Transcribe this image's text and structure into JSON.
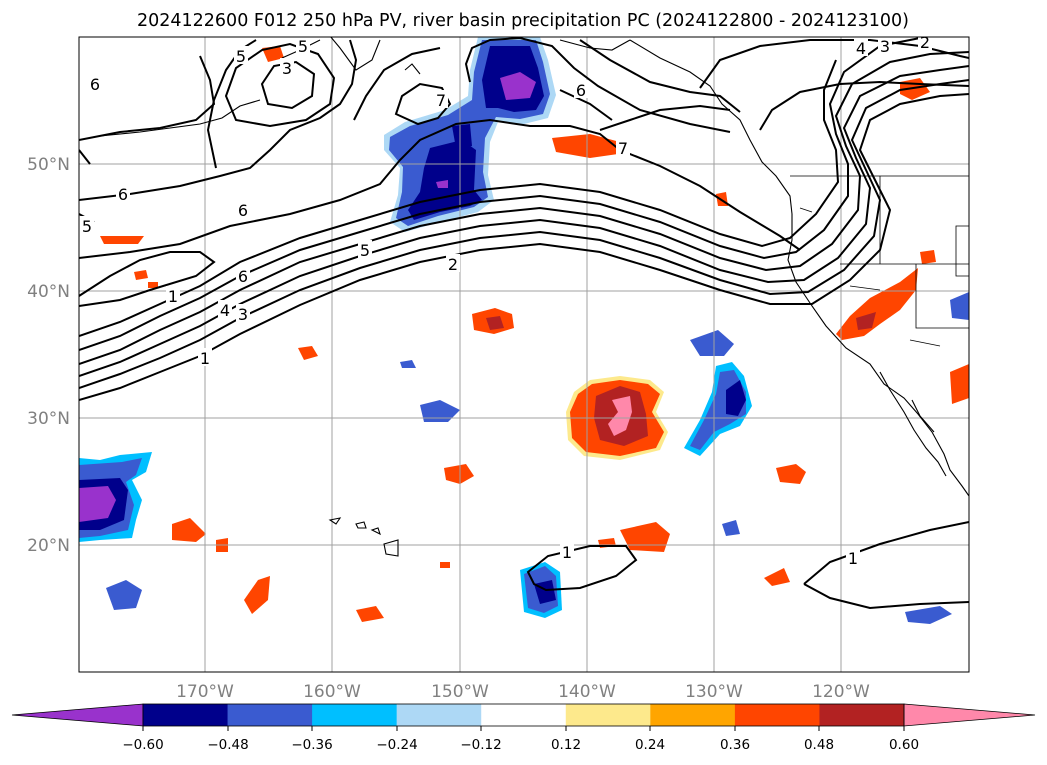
{
  "title": "2024122600 F012 250 hPa PV, river basin precipitation PC (2024122800 - 2024123100)",
  "map": {
    "lon_range": [
      -180,
      -110
    ],
    "lat_range": [
      10,
      60
    ],
    "lon_ticks": [
      "170°W",
      "160°W",
      "150°W",
      "140°W",
      "130°W",
      "120°W"
    ],
    "lat_ticks": [
      "50°N",
      "40°N",
      "30°N",
      "20°N"
    ],
    "grid": true,
    "projection": "PlateCarree"
  },
  "colorbar": {
    "orientation": "horizontal",
    "extend": "both",
    "tick_labels": [
      "−0.60",
      "−0.48",
      "−0.36",
      "−0.24",
      "−0.12",
      "0.12",
      "0.24",
      "0.36",
      "0.48",
      "0.60"
    ],
    "colors": [
      "#9932cc",
      "#00008b",
      "#3a5bd0",
      "#00bfff",
      "#add8f5",
      "#ffffff",
      "#fde98c",
      "#ffa500",
      "#ff4500",
      "#b22222",
      "#ff88aa"
    ]
  },
  "contour_labels": [
    "6",
    "5",
    "3",
    "5",
    "4",
    "3",
    "2",
    "7",
    "6",
    "7",
    "6",
    "6",
    "5",
    "6",
    "5",
    "2",
    "1",
    "4",
    "3",
    "1",
    "1",
    "1"
  ]
}
